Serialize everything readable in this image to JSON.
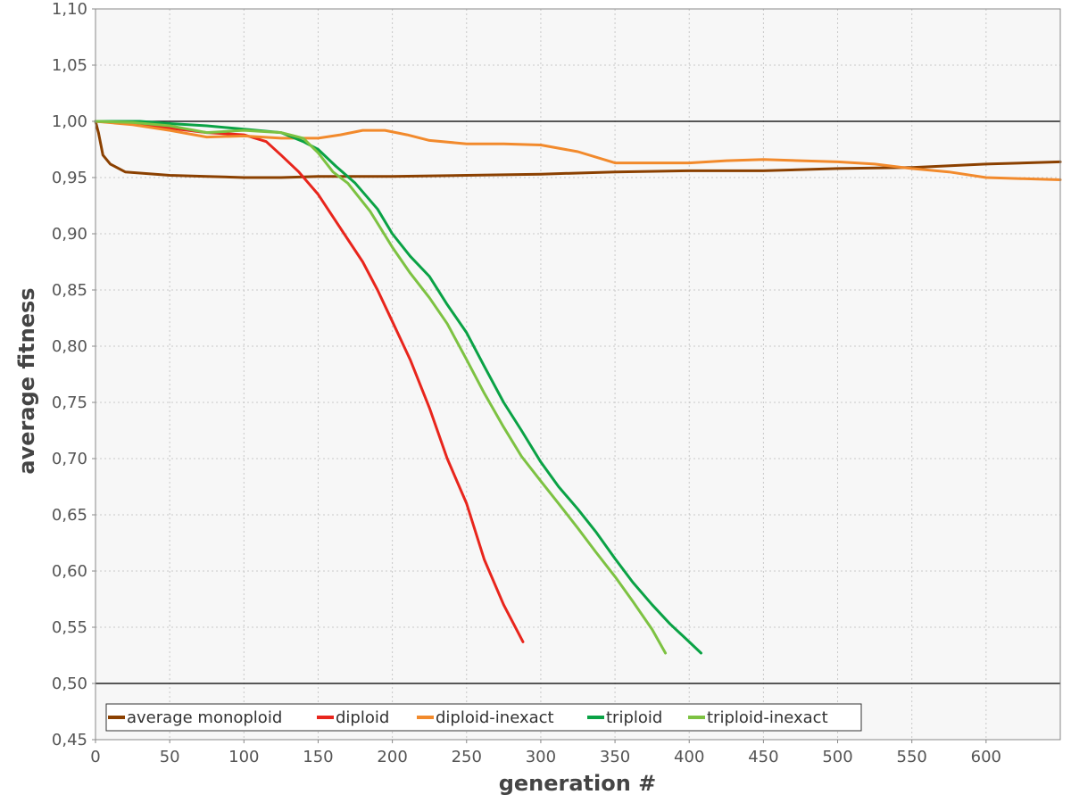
{
  "chart_data": {
    "type": "line",
    "xlabel": "generation #",
    "ylabel": "average fitness",
    "xlim": [
      0,
      650
    ],
    "ylim": [
      0.45,
      1.1
    ],
    "x_ticks": [
      "0",
      "50",
      "100",
      "150",
      "200",
      "250",
      "300",
      "350",
      "400",
      "450",
      "500",
      "550",
      "600"
    ],
    "y_ticks": [
      "0,45",
      "0,50",
      "0,55",
      "0,60",
      "0,65",
      "0,70",
      "0,75",
      "0,80",
      "0,85",
      "0,90",
      "0,95",
      "1,00",
      "1,05",
      "1,10"
    ],
    "reference_lines": [
      1.0,
      0.5
    ],
    "grid": true,
    "legend_position": "bottom-left",
    "series": [
      {
        "name": "average monoploid",
        "color": "#8B4000",
        "points": [
          [
            0,
            1.0
          ],
          [
            2,
            0.99
          ],
          [
            5,
            0.97
          ],
          [
            10,
            0.962
          ],
          [
            20,
            0.955
          ],
          [
            30,
            0.954
          ],
          [
            50,
            0.952
          ],
          [
            75,
            0.951
          ],
          [
            100,
            0.95
          ],
          [
            125,
            0.95
          ],
          [
            150,
            0.951
          ],
          [
            200,
            0.951
          ],
          [
            250,
            0.952
          ],
          [
            300,
            0.953
          ],
          [
            350,
            0.955
          ],
          [
            400,
            0.956
          ],
          [
            450,
            0.956
          ],
          [
            500,
            0.958
          ],
          [
            550,
            0.959
          ],
          [
            600,
            0.962
          ],
          [
            650,
            0.964
          ]
        ]
      },
      {
        "name": "diploid",
        "color": "#E8251C",
        "points": [
          [
            0,
            1.0
          ],
          [
            25,
            0.998
          ],
          [
            50,
            0.994
          ],
          [
            75,
            0.99
          ],
          [
            100,
            0.988
          ],
          [
            115,
            0.982
          ],
          [
            125,
            0.97
          ],
          [
            137,
            0.955
          ],
          [
            150,
            0.935
          ],
          [
            165,
            0.905
          ],
          [
            180,
            0.875
          ],
          [
            190,
            0.85
          ],
          [
            200,
            0.822
          ],
          [
            212,
            0.788
          ],
          [
            225,
            0.745
          ],
          [
            237,
            0.7
          ],
          [
            250,
            0.66
          ],
          [
            262,
            0.61
          ],
          [
            275,
            0.57
          ],
          [
            288,
            0.537
          ]
        ]
      },
      {
        "name": "diploid-inexact",
        "color": "#F28A2C",
        "points": [
          [
            0,
            1.0
          ],
          [
            25,
            0.997
          ],
          [
            50,
            0.992
          ],
          [
            75,
            0.986
          ],
          [
            100,
            0.987
          ],
          [
            125,
            0.985
          ],
          [
            150,
            0.985
          ],
          [
            165,
            0.988
          ],
          [
            180,
            0.992
          ],
          [
            195,
            0.992
          ],
          [
            210,
            0.988
          ],
          [
            225,
            0.983
          ],
          [
            250,
            0.98
          ],
          [
            275,
            0.98
          ],
          [
            300,
            0.979
          ],
          [
            325,
            0.973
          ],
          [
            345,
            0.965
          ],
          [
            350,
            0.963
          ],
          [
            375,
            0.963
          ],
          [
            400,
            0.963
          ],
          [
            425,
            0.965
          ],
          [
            450,
            0.966
          ],
          [
            475,
            0.965
          ],
          [
            500,
            0.964
          ],
          [
            525,
            0.962
          ],
          [
            550,
            0.958
          ],
          [
            575,
            0.955
          ],
          [
            600,
            0.95
          ],
          [
            625,
            0.949
          ],
          [
            650,
            0.948
          ]
        ]
      },
      {
        "name": "triploid",
        "color": "#0AA245",
        "points": [
          [
            0,
            1.0
          ],
          [
            30,
            1.0
          ],
          [
            50,
            0.998
          ],
          [
            75,
            0.996
          ],
          [
            100,
            0.993
          ],
          [
            125,
            0.99
          ],
          [
            140,
            0.982
          ],
          [
            150,
            0.975
          ],
          [
            162,
            0.96
          ],
          [
            175,
            0.945
          ],
          [
            190,
            0.922
          ],
          [
            200,
            0.9
          ],
          [
            212,
            0.88
          ],
          [
            225,
            0.862
          ],
          [
            237,
            0.837
          ],
          [
            250,
            0.812
          ],
          [
            262,
            0.782
          ],
          [
            275,
            0.75
          ],
          [
            287,
            0.725
          ],
          [
            300,
            0.697
          ],
          [
            312,
            0.675
          ],
          [
            325,
            0.655
          ],
          [
            337,
            0.635
          ],
          [
            350,
            0.611
          ],
          [
            362,
            0.59
          ],
          [
            375,
            0.57
          ],
          [
            387,
            0.553
          ],
          [
            400,
            0.537
          ],
          [
            408,
            0.527
          ]
        ]
      },
      {
        "name": "triploid-inexact",
        "color": "#7DC242",
        "points": [
          [
            0,
            1.0
          ],
          [
            25,
            0.999
          ],
          [
            50,
            0.996
          ],
          [
            75,
            0.99
          ],
          [
            100,
            0.992
          ],
          [
            125,
            0.99
          ],
          [
            140,
            0.985
          ],
          [
            150,
            0.972
          ],
          [
            160,
            0.955
          ],
          [
            170,
            0.945
          ],
          [
            185,
            0.92
          ],
          [
            200,
            0.888
          ],
          [
            212,
            0.865
          ],
          [
            225,
            0.843
          ],
          [
            237,
            0.82
          ],
          [
            250,
            0.788
          ],
          [
            262,
            0.758
          ],
          [
            275,
            0.728
          ],
          [
            287,
            0.702
          ],
          [
            300,
            0.68
          ],
          [
            312,
            0.66
          ],
          [
            325,
            0.638
          ],
          [
            337,
            0.617
          ],
          [
            350,
            0.595
          ],
          [
            362,
            0.573
          ],
          [
            375,
            0.548
          ],
          [
            384,
            0.527
          ]
        ]
      }
    ]
  }
}
